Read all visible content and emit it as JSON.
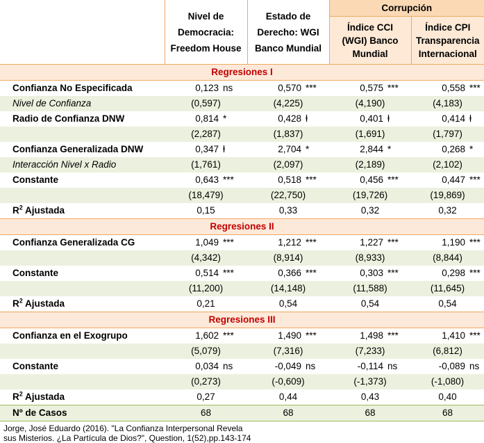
{
  "header": {
    "col1": [
      "Nivel de",
      "Democracia:",
      "Freedom House"
    ],
    "col2": [
      "Estado de",
      "Derecho: WGI",
      "Banco Mundial"
    ],
    "group": "Corrupción",
    "col3": [
      "Índice CCI",
      "(WGI) Banco",
      "Mundial"
    ],
    "col4": [
      "Índice CPI",
      "Transparencia",
      "Internacional"
    ]
  },
  "sections": {
    "s1": "Regresiones I",
    "s2": "Regresiones II",
    "s3": "Regresiones III"
  },
  "rows": {
    "r1": {
      "label": "Confianza No Especificada",
      "v": [
        "0,123",
        "0,570",
        "0,575",
        "0,558"
      ],
      "s": [
        "ns",
        "***",
        "***",
        "***"
      ]
    },
    "r2": {
      "label": "Nivel de Confianza",
      "v": [
        "(0,597)",
        "(4,225)",
        "(4,190)",
        "(4,183)"
      ]
    },
    "r3": {
      "label": "Radio de Confianza DNW",
      "v": [
        "0,814",
        "0,428",
        "0,401",
        "0,414"
      ],
      "s": [
        "*",
        "ⱡ",
        "ⱡ",
        "ⱡ"
      ]
    },
    "r4": {
      "label": "",
      "v": [
        "(2,287)",
        "(1,837)",
        "(1,691)",
        "(1,797)"
      ]
    },
    "r5": {
      "label": "Confianza Generalizada DNW",
      "v": [
        "0,347",
        "2,704",
        "2,844",
        "0,268"
      ],
      "s": [
        "ⱡ",
        "*",
        "*",
        "*"
      ]
    },
    "r6": {
      "label": "Interacción Nivel x Radio",
      "v": [
        "(1,761)",
        "(2,097)",
        "(2,189)",
        "(2,102)"
      ]
    },
    "r7": {
      "label": "Constante",
      "v": [
        "0,643",
        "0,518",
        "0,456",
        "0,447"
      ],
      "s": [
        "***",
        "***",
        "***",
        "***"
      ]
    },
    "r8": {
      "label": "",
      "v": [
        "(18,479)",
        "(22,750)",
        "(19,726)",
        "(19,869)"
      ]
    },
    "r9": {
      "label_main": "R",
      "label_sup": "2",
      "label_rest": " Ajustada",
      "v": [
        "0,15",
        "0,33",
        "0,32",
        "0,32"
      ]
    },
    "r10": {
      "label": "Confianza Generalizada CG",
      "v": [
        "1,049",
        "1,212",
        "1,227",
        "1,190"
      ],
      "s": [
        "***",
        "***",
        "***",
        "***"
      ]
    },
    "r11": {
      "label": "",
      "v": [
        "(4,342)",
        "(8,914)",
        "(8,933)",
        "(8,844)"
      ]
    },
    "r12": {
      "label": "Constante",
      "v": [
        "0,514",
        "0,366",
        "0,303",
        "0,298"
      ],
      "s": [
        "***",
        "***",
        "***",
        "***"
      ]
    },
    "r13": {
      "label": "",
      "v": [
        "(11,200)",
        "(14,148)",
        "(11,588)",
        "(11,645)"
      ]
    },
    "r14": {
      "label_main": "R",
      "label_sup": "2",
      "label_rest": " Ajustada",
      "v": [
        "0,21",
        "0,54",
        "0,54",
        "0,54"
      ]
    },
    "r15": {
      "label": "Confianza en el Exogrupo",
      "v": [
        "1,602",
        "1,490",
        "1,498",
        "1,410"
      ],
      "s": [
        "***",
        "***",
        "***",
        "***"
      ]
    },
    "r16": {
      "label": "",
      "v": [
        "(5,079)",
        "(7,316)",
        "(7,233)",
        "(6,812)"
      ]
    },
    "r17": {
      "label": "Constante",
      "v": [
        "0,034",
        "-0,049",
        "-0,114",
        "-0,089"
      ],
      "s": [
        "ns",
        "ns",
        "ns",
        "ns"
      ]
    },
    "r18": {
      "label": "",
      "v": [
        "(0,273)",
        "(-0,609)",
        "(-1,373)",
        "(-1,080)"
      ]
    },
    "r19": {
      "label_main": "R",
      "label_sup": "2",
      "label_rest": " Ajustada",
      "v": [
        "0,27",
        "0,44",
        "0,43",
        "0,40"
      ]
    },
    "r20": {
      "label": "Nº de Casos",
      "v": [
        "68",
        "68",
        "68",
        "68"
      ]
    }
  },
  "footer": {
    "line1": "Jorge, José Eduardo (2016). \"La Confianza Interpersonal Revela",
    "line2": "sus Misterios. ¿La Partícula de Dios?\", Question, 1(52),pp.143-174"
  }
}
